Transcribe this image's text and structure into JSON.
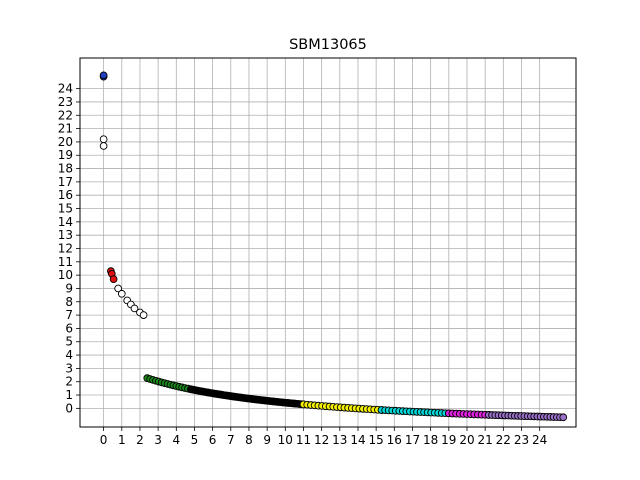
{
  "chart_data": {
    "type": "scatter",
    "title": "SBM13065",
    "xlabel": "",
    "ylabel": "",
    "xlim": [
      -1.3,
      26
    ],
    "ylim": [
      -1.4,
      26.3
    ],
    "x_ticks": [
      "0",
      "1",
      "2",
      "3",
      "4",
      "5",
      "6",
      "7",
      "8",
      "9",
      "10",
      "11",
      "12",
      "13",
      "14",
      "15",
      "16",
      "17",
      "18",
      "19",
      "20",
      "21",
      "22",
      "23",
      "24"
    ],
    "y_ticks": [
      "0",
      "1",
      "2",
      "3",
      "4",
      "5",
      "6",
      "7",
      "8",
      "9",
      "10",
      "11",
      "12",
      "13",
      "14",
      "15",
      "16",
      "17",
      "18",
      "19",
      "20",
      "21",
      "22",
      "23",
      "24"
    ],
    "grid": true,
    "curve": {
      "description_free": true,
      "x_start": 2.2,
      "x_end": 25.3,
      "k": 40.0,
      "offset": 7.2,
      "shift": -1.9
    },
    "series": [
      {
        "color": "#1f3fbf",
        "points": [
          [
            0.0,
            24.9
          ],
          [
            0.0,
            25.0
          ]
        ]
      },
      {
        "color": "#ffffff",
        "points": [
          [
            0.0,
            20.2
          ],
          [
            0.0,
            19.7
          ],
          [
            0.8,
            9.0
          ],
          [
            1.0,
            8.6
          ],
          [
            1.3,
            8.1
          ],
          [
            1.5,
            7.8
          ],
          [
            1.7,
            7.5
          ],
          [
            2.0,
            7.2
          ],
          [
            2.2,
            7.0
          ]
        ]
      },
      {
        "color": "#e01010",
        "points": [
          [
            0.4,
            10.3
          ],
          [
            0.45,
            10.1
          ],
          [
            0.55,
            9.7
          ]
        ]
      },
      {
        "color": "#1a8a1a",
        "x_range": [
          2.4,
          4.8
        ],
        "count": 16
      },
      {
        "color": "#000000",
        "x_range": [
          4.8,
          11.0
        ],
        "count": 70
      },
      {
        "color": "#f5f000",
        "x_range": [
          11.0,
          15.3
        ],
        "count": 22
      },
      {
        "color": "#00d8d8",
        "x_range": [
          15.3,
          19.0
        ],
        "count": 20
      },
      {
        "color": "#e020e0",
        "x_range": [
          19.0,
          21.2
        ],
        "count": 12
      },
      {
        "color": "#9a70c8",
        "x_range": [
          21.2,
          25.3
        ],
        "count": 24
      }
    ]
  }
}
